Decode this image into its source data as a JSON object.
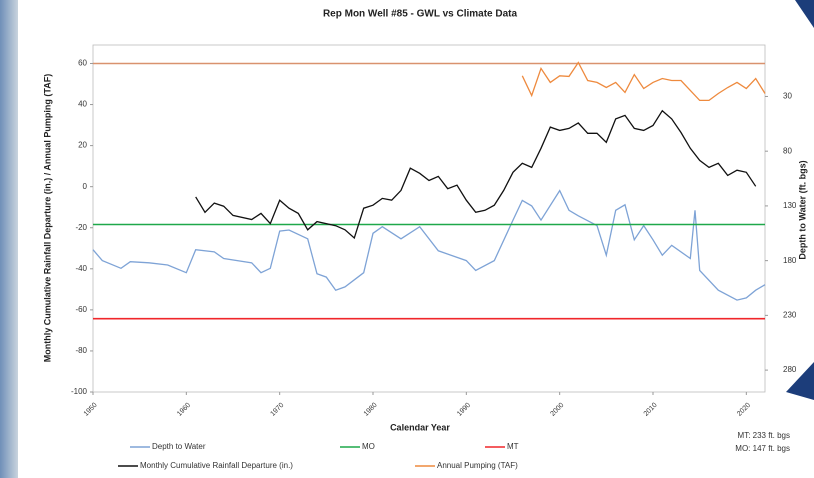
{
  "chart_data": {
    "type": "line",
    "title": "Rep Mon Well #85 - GWL vs Climate Data",
    "x_label": "Calendar Year",
    "y_label": "Monthly Cumulative Rainfall Departure (in.) / Annual Pumping (TAF)",
    "y2_label": "Depth to Water (ft. bgs)",
    "xlim": [
      1950,
      2022
    ],
    "xticks": [
      1950,
      1960,
      1970,
      1980,
      1990,
      2000,
      2010,
      2020
    ],
    "ylim": [
      -100,
      69
    ],
    "yticks": [
      -100,
      -80,
      -60,
      -40,
      -20,
      0,
      20,
      40,
      60
    ],
    "y2lim": [
      300,
      -17
    ],
    "y2ticks": [
      30,
      80,
      130,
      180,
      230,
      280
    ],
    "reference_lines": [
      {
        "value": 60,
        "color": "#d9926e"
      }
    ],
    "notes": [
      "MT: 233 ft. bgs",
      "MO: 147 ft. bgs"
    ],
    "series": [
      {
        "name": "Depth to Water",
        "color": "#7ea3d6",
        "axis": "y2",
        "x": [
          1950,
          1951,
          1953,
          1954,
          1956,
          1958,
          1960,
          1961,
          1963,
          1964,
          1967,
          1968,
          1969,
          1970,
          1971,
          1973,
          1974,
          1975,
          1976,
          1977,
          1979,
          1980,
          1981,
          1983,
          1985,
          1987,
          1990,
          1991,
          1993,
          1995,
          1996,
          1997,
          1998,
          2000,
          2001,
          2002,
          2004,
          2005,
          2006,
          2007,
          2008,
          2009,
          2010,
          2011,
          2012,
          2014,
          2014.5,
          2015,
          2017,
          2019,
          2020,
          2021,
          2022
        ],
        "values": [
          170,
          180,
          187,
          181,
          182,
          184,
          191,
          170,
          172,
          178,
          182,
          191,
          187,
          153,
          152,
          160,
          192,
          195,
          207,
          204,
          191,
          155,
          149,
          160,
          149,
          171,
          180,
          189,
          180,
          143,
          125,
          130,
          143,
          116,
          134,
          139,
          148,
          175,
          134,
          129,
          161,
          148,
          161,
          175,
          166,
          178,
          134,
          189,
          207,
          216,
          214,
          207,
          202
        ]
      },
      {
        "name": "MO",
        "color": "#1fa84a",
        "axis": "y2",
        "x": [
          1950,
          2022
        ],
        "values": [
          147,
          147
        ]
      },
      {
        "name": "MT",
        "color": "#f0262a",
        "axis": "y2",
        "x": [
          1950,
          2022
        ],
        "values": [
          233,
          233
        ]
      },
      {
        "name": "Monthly Cumulative Rainfall Departure (in.)",
        "color": "#111111",
        "x": [
          1961,
          1962,
          1963,
          1964,
          1965,
          1967,
          1968,
          1969,
          1970,
          1971,
          1972,
          1973,
          1974,
          1976,
          1977,
          1978,
          1979,
          1980,
          1981,
          1982,
          1983,
          1984,
          1985,
          1986,
          1987,
          1988,
          1989,
          1990,
          1991,
          1992,
          1993,
          1994,
          1995,
          1996,
          1997,
          1998,
          1999,
          2000,
          2001,
          2002,
          2003,
          2004,
          2005,
          2006,
          2007,
          2008,
          2009,
          2010,
          2011,
          2012,
          2013,
          2014,
          2015,
          2016,
          2017,
          2018,
          2019,
          2020,
          2021
        ],
        "values": [
          -5,
          -12.5,
          -8,
          -9.5,
          -14,
          -16,
          -13,
          -18,
          -6.6,
          -10.5,
          -13,
          -21,
          -17,
          -19,
          -21,
          -25,
          -10.5,
          -9,
          -5.7,
          -6.6,
          -1.8,
          9,
          6.5,
          3,
          5,
          -1,
          0.7,
          -6.6,
          -12.5,
          -11.5,
          -9,
          -1.8,
          7,
          11.4,
          9.4,
          18.7,
          29,
          27.4,
          28.4,
          31,
          26,
          26,
          21.6,
          33,
          34.7,
          28.4,
          27.4,
          29.8,
          37,
          33,
          26.4,
          18.7,
          12.8,
          9.4,
          11.4,
          5.5,
          8,
          7,
          0.2
        ]
      },
      {
        "name": "Annual Pumping (TAF)",
        "color": "#ee8a3e",
        "x": [
          1996,
          1997,
          1998,
          1999,
          2000,
          2001,
          2002,
          2003,
          2004,
          2005,
          2006,
          2007,
          2008,
          2009,
          2010,
          2011,
          2012,
          2013,
          2014,
          2015,
          2016,
          2017,
          2018,
          2019,
          2020,
          2021,
          2022
        ],
        "values": [
          54,
          44.4,
          57.6,
          50.8,
          54,
          53.7,
          60.5,
          51.7,
          50.8,
          48.3,
          50.8,
          45.9,
          54.6,
          47.8,
          50.8,
          52.7,
          51.7,
          51.7,
          46.9,
          42,
          42,
          45.4,
          48.3,
          50.8,
          47.8,
          52.7,
          45.4
        ]
      }
    ]
  }
}
